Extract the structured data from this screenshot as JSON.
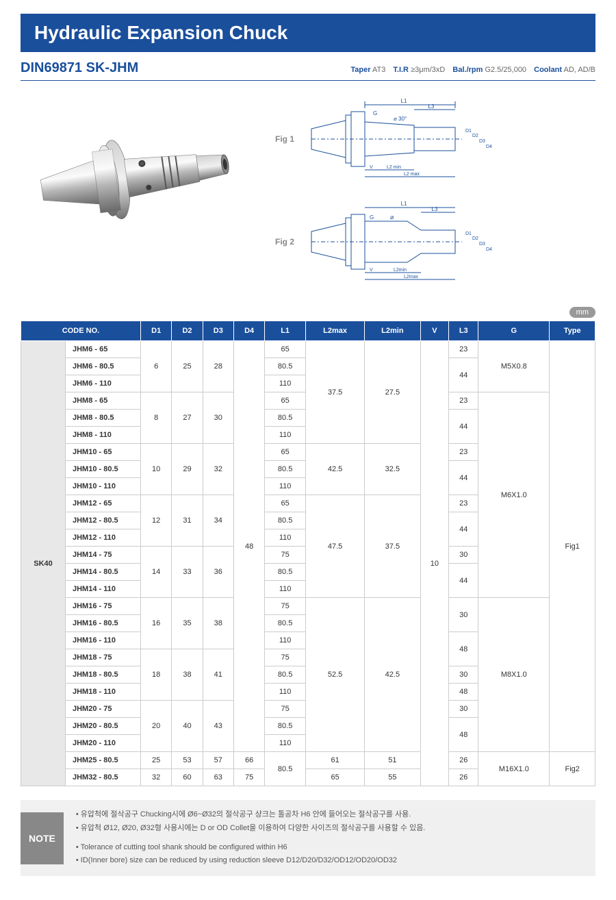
{
  "title": "Hydraulic Expansion Chuck",
  "model": "DIN69871 SK-JHM",
  "specs": {
    "taper_k": "Taper",
    "taper_v": "AT3",
    "tir_k": "T.I.R",
    "tir_v": "≥3μm/3xD",
    "bal_k": "Bal./rpm",
    "bal_v": "G2.5/25,000",
    "cool_k": "Coolant",
    "cool_v": "AD, AD/B"
  },
  "fig1_label": "Fig 1",
  "fig2_label": "Fig 2",
  "unit": "mm",
  "columns": [
    "CODE NO.",
    "D1",
    "D2",
    "D3",
    "D4",
    "L1",
    "L2max",
    "L2min",
    "V",
    "L3",
    "G",
    "Type"
  ],
  "group_label": "SK40",
  "rows": [
    {
      "code": "JHM6 -  65",
      "d1": "6",
      "d2": "25",
      "d3": "28",
      "d4": "48",
      "l1": "65",
      "l2max": "37.5",
      "l2min": "27.5",
      "v": "10",
      "l3": "23",
      "g": "M5X0.8",
      "type": "Fig1"
    },
    {
      "code": "JHM6 - 80.5",
      "l1": "80.5",
      "l3": "44"
    },
    {
      "code": "JHM6 - 110",
      "l1": "110"
    },
    {
      "code": "JHM8 - 65",
      "d1": "8",
      "d2": "27",
      "d3": "30",
      "l1": "65",
      "l3": "23",
      "g": "M6X1.0"
    },
    {
      "code": "JHM8 - 80.5",
      "l1": "80.5",
      "l3": "44"
    },
    {
      "code": "JHM8 - 110",
      "l1": "110"
    },
    {
      "code": "JHM10 - 65",
      "d1": "10",
      "d2": "29",
      "d3": "32",
      "l1": "65",
      "l2max": "42.5",
      "l2min": "32.5",
      "l3": "23"
    },
    {
      "code": "JHM10 - 80.5",
      "l1": "80.5",
      "l3": "44"
    },
    {
      "code": "JHM10 - 110",
      "l1": "110"
    },
    {
      "code": "JHM12 - 65",
      "d1": "12",
      "d2": "31",
      "d3": "34",
      "l1": "65",
      "l2max": "47.5",
      "l2min": "37.5",
      "l3": "23"
    },
    {
      "code": "JHM12 - 80.5",
      "l1": "80.5",
      "l3": "44"
    },
    {
      "code": "JHM12 - 110",
      "l1": "110"
    },
    {
      "code": "JHM14 - 75",
      "d1": "14",
      "d2": "33",
      "d3": "36",
      "l1": "75",
      "l3": "30"
    },
    {
      "code": "JHM14 - 80.5",
      "l1": "80.5",
      "l3": "44"
    },
    {
      "code": "JHM14 - 110",
      "l1": "110"
    },
    {
      "code": "JHM16 - 75",
      "d1": "16",
      "d2": "35",
      "d3": "38",
      "l1": "75",
      "l2max": "52.5",
      "l2min": "42.5",
      "l3": "30",
      "g": "M8X1.0"
    },
    {
      "code": "JHM16 - 80.5",
      "l1": "80.5"
    },
    {
      "code": "JHM16 - 110",
      "l1": "110",
      "l3": "48"
    },
    {
      "code": "JHM18 - 75",
      "d1": "18",
      "d2": "38",
      "d3": "41",
      "l1": "75"
    },
    {
      "code": "JHM18 - 80.5",
      "l1": "80.5",
      "l3": "30"
    },
    {
      "code": "JHM18 - 110",
      "l1": "110",
      "l3": "48"
    },
    {
      "code": "JHM20 - 75",
      "d1": "20",
      "d2": "40",
      "d3": "43",
      "l1": "75",
      "l3": "30"
    },
    {
      "code": "JHM20 - 80.5",
      "l1": "80.5",
      "l3": "48"
    },
    {
      "code": "JHM20 - 110",
      "l1": "110"
    },
    {
      "code": "JHM25 - 80.5",
      "d1": "25",
      "d2": "53",
      "d3": "57",
      "d4": "66",
      "l1": "80.5",
      "l2max": "61",
      "l2min": "51",
      "l3": "26",
      "g": "M16X1.0",
      "type": "Fig2"
    },
    {
      "code": "JHM32 - 80.5",
      "d1": "32",
      "d2": "60",
      "d3": "63",
      "d4": "75",
      "l2max": "65",
      "l2min": "55",
      "l3": "26"
    }
  ],
  "notes": {
    "label": "NOTE",
    "lines": [
      "• 유압척에 절삭공구 Chucking시에 Ø6~Ø32의 절삭공구 샹크는 톨공차 H6 안에 들어오는 절삭공구를 사용.",
      "• 유압척 Ø12, Ø20, Ø32형 사용시에는 D or OD Collet을 이용하여 다양한 사이즈의 절삭공구를 사용할 수 있음.",
      "• Tolerance of cutting tool shank should be configured within H6",
      "• ID(Inner bore) size can be reduced by using reduction sleeve D12/D20/D32/OD12/OD20/OD32"
    ]
  },
  "colors": {
    "primary": "#1a4f9c",
    "grey_bg": "#e8e8e8",
    "border": "#cccccc"
  }
}
